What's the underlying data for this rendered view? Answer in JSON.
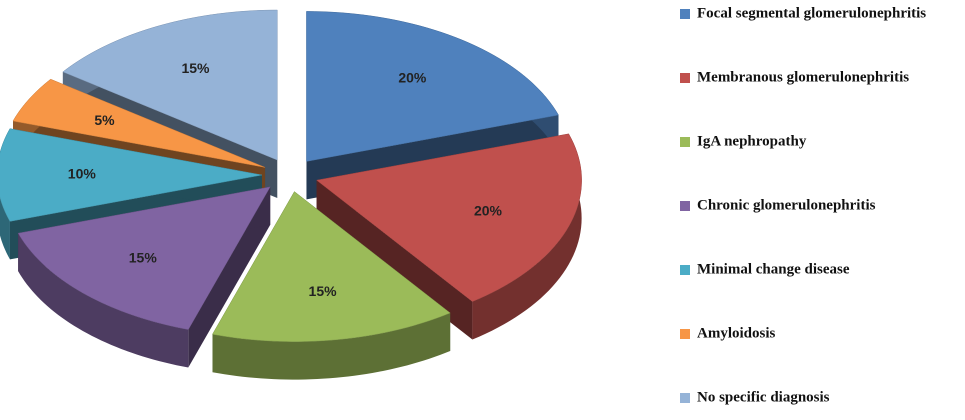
{
  "chart_data": {
    "type": "pie",
    "categories": [
      "Focal segmental glomerulonephritis",
      "Membranous glomerulonephritis",
      "IgA nephropathy",
      "Chronic glomerulonephritis",
      "Minimal change disease",
      "Amyloidosis",
      "No specific diagnosis"
    ],
    "values": [
      20,
      20,
      15,
      15,
      10,
      5,
      15
    ],
    "value_labels": [
      "20%",
      "20%",
      "15%",
      "15%",
      "10%",
      "5%",
      "15%"
    ],
    "colors": [
      "#4f81bd",
      "#c0504d",
      "#9bbb59",
      "#8064a2",
      "#4bacc6",
      "#f79646",
      "#95b3d7"
    ],
    "legend": "right"
  }
}
